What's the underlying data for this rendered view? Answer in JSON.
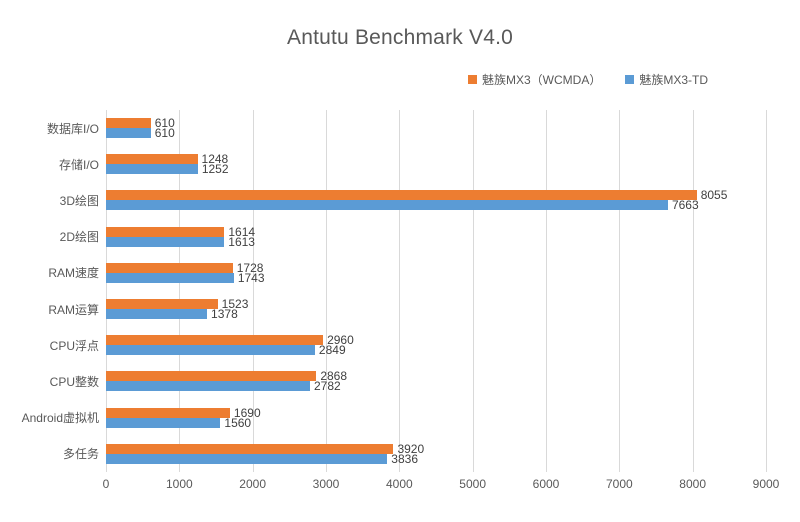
{
  "chart_data": {
    "type": "bar",
    "orientation": "horizontal",
    "title": "Antutu Benchmark V4.0",
    "categories": [
      "数据库I/O",
      "存储I/O",
      "3D绘图",
      "2D绘图",
      "RAM速度",
      "RAM运算",
      "CPU浮点",
      "CPU整数",
      "Android虚拟机",
      "多任务"
    ],
    "series": [
      {
        "name": "魅族MX3（WCMDA）",
        "color": "#ED7D31",
        "values": [
          610,
          1248,
          8055,
          1614,
          1728,
          1523,
          2960,
          2868,
          1690,
          3920
        ]
      },
      {
        "name": "魅族MX3-TD",
        "color": "#5B9BD5",
        "values": [
          610,
          1252,
          7663,
          1613,
          1743,
          1378,
          2849,
          2782,
          1560,
          3836
        ]
      }
    ],
    "xlabel": "",
    "ylabel": "",
    "xlim": [
      0,
      9000
    ],
    "x_ticks": [
      0,
      1000,
      2000,
      3000,
      4000,
      5000,
      6000,
      7000,
      8000,
      9000
    ],
    "grid": "vertical",
    "data_labels": "outside-end",
    "legend_position": "top-right",
    "colors": {
      "title_text": "#595959",
      "axis_text": "#595959",
      "value_text": "#404040",
      "gridline": "#D9D9D9",
      "background": "#FFFFFF"
    }
  }
}
